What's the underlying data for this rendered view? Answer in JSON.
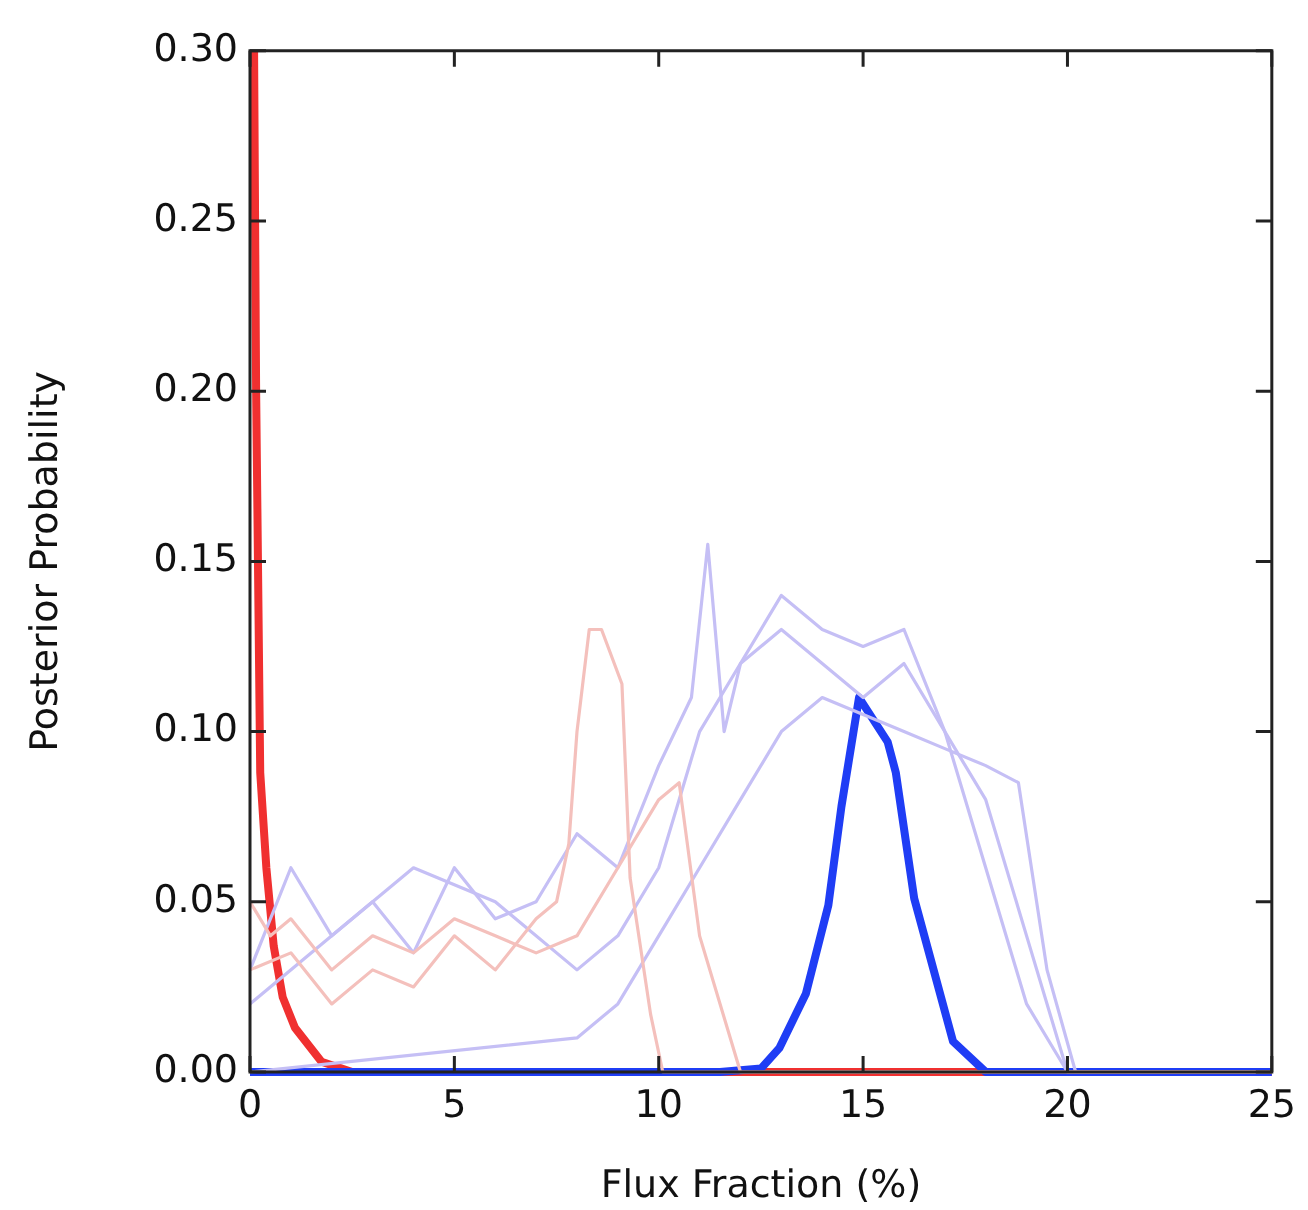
{
  "chart_data": {
    "type": "line",
    "xlabel": "Flux Fraction (%)",
    "ylabel": "Posterior Probability",
    "xlim": [
      0,
      25
    ],
    "ylim": [
      0,
      0.3
    ],
    "xticks": [
      0,
      5,
      10,
      15,
      20,
      25
    ],
    "yticks": [
      {
        "value": 0,
        "label": "0.00"
      },
      {
        "value": 0.05,
        "label": "0.05"
      },
      {
        "value": 0.1,
        "label": "0.10"
      },
      {
        "value": 0.15,
        "label": "0.15"
      },
      {
        "value": 0.2,
        "label": "0.20"
      },
      {
        "value": 0.25,
        "label": "0.25"
      },
      {
        "value": 0.3,
        "label": "0.30"
      }
    ],
    "legend": false,
    "grid": false,
    "series": [
      {
        "color": "#f4c0bc",
        "x": [
          0,
          1,
          2,
          3,
          4,
          5,
          6,
          7,
          7.5,
          7.8,
          8,
          8.3,
          8.6,
          9.1,
          9.3,
          9.8,
          10.1,
          25
        ],
        "values": [
          0.03,
          0.035,
          0.02,
          0.03,
          0.025,
          0.04,
          0.03,
          0.045,
          0.05,
          0.067,
          0.1,
          0.13,
          0.13,
          0.114,
          0.057,
          0.017,
          0,
          0
        ]
      },
      {
        "color": "#f4c0bc",
        "x": [
          0,
          0.5,
          1,
          2,
          3,
          4,
          5,
          6,
          7,
          8,
          9,
          10,
          10.5,
          11,
          12,
          25
        ],
        "values": [
          0.05,
          0.04,
          0.045,
          0.03,
          0.04,
          0.035,
          0.045,
          0.04,
          0.035,
          0.04,
          0.06,
          0.08,
          0.085,
          0.04,
          0,
          0
        ]
      },
      {
        "color": "#c5bff5",
        "x": [
          0,
          1,
          2,
          3,
          4,
          5,
          6,
          7,
          8,
          9,
          10,
          10.8,
          11.2,
          11.6,
          12,
          13,
          14,
          15,
          16,
          17,
          18,
          19,
          20,
          25
        ],
        "values": [
          0.03,
          0.06,
          0.04,
          0.05,
          0.035,
          0.06,
          0.045,
          0.05,
          0.07,
          0.06,
          0.09,
          0.11,
          0.155,
          0.1,
          0.12,
          0.14,
          0.13,
          0.125,
          0.13,
          0.1,
          0.06,
          0.02,
          0,
          0
        ]
      },
      {
        "color": "#c5bff5",
        "x": [
          0,
          8,
          9,
          10,
          11,
          12,
          13,
          14,
          15,
          16,
          17,
          18,
          18.8,
          19.5,
          20.2,
          25
        ],
        "values": [
          0,
          0.01,
          0.02,
          0.04,
          0.06,
          0.08,
          0.1,
          0.11,
          0.105,
          0.1,
          0.095,
          0.09,
          0.085,
          0.03,
          0,
          0
        ]
      },
      {
        "color": "#c5bff5",
        "x": [
          0,
          2,
          4,
          6,
          8,
          9,
          10,
          11,
          12,
          13,
          14,
          15,
          16,
          17,
          18,
          19,
          20,
          25
        ],
        "values": [
          0.02,
          0.04,
          0.06,
          0.05,
          0.03,
          0.04,
          0.06,
          0.1,
          0.12,
          0.13,
          0.12,
          0.11,
          0.12,
          0.1,
          0.08,
          0.04,
          0,
          0
        ]
      },
      {
        "color": "#1f3df5",
        "x": [
          0,
          11.5,
          12.5,
          12.95,
          13.6,
          14.15,
          14.47,
          14.9,
          15.6,
          15.8,
          16.25,
          17.2,
          18,
          25
        ],
        "values": [
          0,
          0,
          0.001,
          0.007,
          0.023,
          0.049,
          0.078,
          0.11,
          0.097,
          0.088,
          0.051,
          0.009,
          0,
          0
        ]
      },
      {
        "color": "#f03030",
        "x": [
          0.1,
          0.15,
          0.25,
          0.4,
          0.58,
          0.8,
          1.1,
          1.75,
          2.5,
          25
        ],
        "values": [
          0.3,
          0.2,
          0.088,
          0.06,
          0.037,
          0.022,
          0.013,
          0.003,
          0,
          0
        ]
      }
    ]
  }
}
